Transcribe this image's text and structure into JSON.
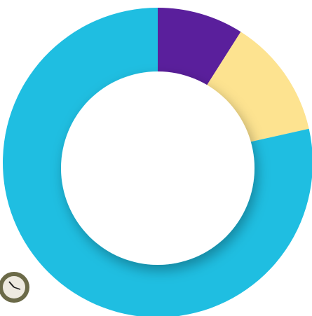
{
  "chart_data": {
    "type": "donut",
    "categories": [
      null,
      null,
      null
    ],
    "values": [
      9,
      12.5,
      78.5
    ],
    "colors": [
      "#5a1f9c",
      "#fde390",
      "#1fbee1"
    ]
  }
}
